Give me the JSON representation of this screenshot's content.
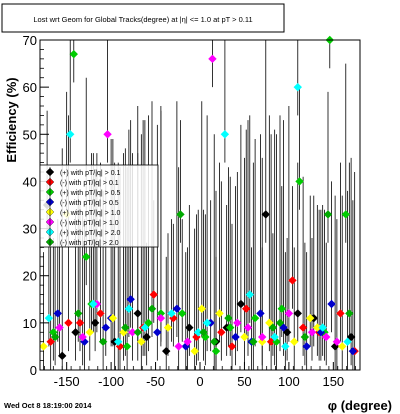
{
  "chart_data": {
    "type": "scatter",
    "title": "Lost wrt Geom for Global Tracks(degree) at |η| <= 1.0 at pT > 0.11",
    "xlabel": "φ (degree)",
    "ylabel": "Efficiency (%)",
    "xlim": [
      -180,
      180
    ],
    "ylim": [
      0,
      70
    ],
    "x_ticks": [
      -150,
      -100,
      -50,
      0,
      50,
      100,
      150
    ],
    "y_ticks": [
      0,
      10,
      20,
      30,
      40,
      50,
      60,
      70
    ],
    "grid": false,
    "legend_position": "upper-left",
    "series": [
      {
        "name": "(+) with pT/|q| > 0.1",
        "color": "#000000",
        "x": [
          -172,
          -140,
          -118,
          -96,
          -70,
          -38,
          -12,
          18,
          46,
          74,
          98,
          128,
          152,
          170,
          -155,
          -60,
          30,
          110
        ],
        "y": [
          35,
          8,
          10,
          6,
          12,
          4,
          9,
          6,
          14,
          33,
          8,
          11,
          5,
          7,
          3,
          7,
          9,
          12
        ]
      },
      {
        "name": "(-) with pT/|q| > 0.1",
        "color": "#ff0000",
        "x": [
          -168,
          -135,
          -112,
          -90,
          -64,
          -30,
          -4,
          24,
          52,
          80,
          104,
          134,
          158,
          174,
          -148,
          -52,
          36,
          116
        ],
        "y": [
          6,
          10,
          12,
          5,
          9,
          11,
          7,
          8,
          13,
          6,
          19,
          8,
          12,
          4,
          10,
          16,
          5,
          9
        ]
      },
      {
        "name": "(+) with pT/|q| > 0.5",
        "color": "#00cc00",
        "x": [
          -165,
          -142,
          -122,
          -82,
          -58,
          -20,
          6,
          34,
          62,
          86,
          112,
          140,
          164,
          -128,
          -44,
          18,
          92,
          146
        ],
        "y": [
          8,
          67,
          14,
          5,
          10,
          12,
          7,
          9,
          11,
          6,
          40,
          8,
          33,
          24,
          12,
          4,
          13,
          70
        ]
      },
      {
        "name": "(-) with pT/|q| > 0.5",
        "color": "#0000cc",
        "x": [
          -160,
          -130,
          -106,
          -78,
          -48,
          -16,
          12,
          40,
          68,
          94,
          120,
          148,
          172,
          -100,
          -26,
          58,
          136
        ],
        "y": [
          12,
          6,
          9,
          15,
          8,
          5,
          10,
          7,
          12,
          9,
          5,
          14,
          4,
          11,
          13,
          6,
          8
        ]
      },
      {
        "name": "(+) with pT/|q| > 1.0",
        "color": "#ffff00",
        "x": [
          -176,
          -150,
          -124,
          -98,
          -66,
          -36,
          -6,
          22,
          50,
          78,
          106,
          132,
          160,
          -86,
          2,
          70,
          124
        ],
        "y": [
          5,
          33,
          8,
          11,
          6,
          9,
          4,
          12,
          7,
          10,
          6,
          9,
          5,
          8,
          13,
          6,
          11
        ]
      },
      {
        "name": "(-) with pT/|q| > 1.0",
        "color": "#ff00ff",
        "x": [
          -158,
          -132,
          -104,
          -76,
          -44,
          -14,
          14,
          42,
          70,
          100,
          126,
          154,
          -116,
          -24,
          54,
          142
        ],
        "y": [
          9,
          7,
          50,
          8,
          11,
          6,
          66,
          10,
          7,
          12,
          8,
          6,
          14,
          5,
          9,
          7
        ]
      },
      {
        "name": "(+) with pT/|q| > 2.0",
        "color": "#00ffff",
        "x": [
          -170,
          -146,
          -120,
          -92,
          -62,
          -32,
          -2,
          28,
          56,
          84,
          110,
          138,
          166,
          -80,
          8,
          96
        ],
        "y": [
          11,
          50,
          14,
          6,
          9,
          12,
          8,
          50,
          16,
          7,
          60,
          9,
          6,
          13,
          10,
          5
        ]
      },
      {
        "name": "(-) with pT/|q| > 2.0",
        "color": "#00aa00",
        "x": [
          -163,
          -137,
          -109,
          -84,
          -54,
          -22,
          4,
          32,
          60,
          90,
          118,
          144,
          168,
          -70,
          16,
          82
        ],
        "y": [
          7,
          12,
          6,
          9,
          13,
          33,
          8,
          11,
          6,
          10,
          7,
          33,
          12,
          8,
          6,
          9
        ]
      }
    ]
  },
  "footer": {
    "timestamp": "Wed Oct  8 18:19:00 2014"
  }
}
